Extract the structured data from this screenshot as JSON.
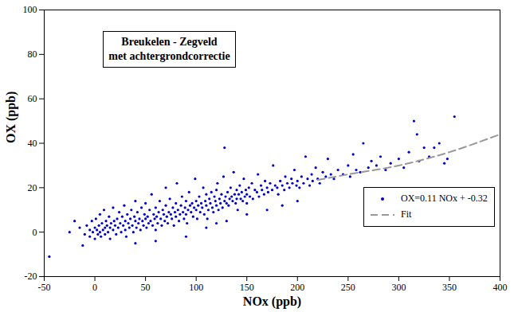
{
  "chart_data": {
    "type": "scatter",
    "title": "Breukelen - Zegveld",
    "subtitle": "met achtergrondcorrectie",
    "x_label": "NOx (ppb)",
    "y_label": "OX (ppb)",
    "xlim": [
      -50,
      400
    ],
    "xticks": [
      -50,
      0,
      50,
      100,
      150,
      200,
      250,
      300,
      350,
      400
    ],
    "ylim": [
      -20,
      100
    ],
    "yticks": [
      -20,
      0,
      20,
      40,
      60,
      80,
      100
    ],
    "grid": false,
    "legend": "lower right",
    "series": [
      {
        "name": "OX=0.11 NOx + -0.32",
        "type": "scatter",
        "marker": "circle",
        "color": "#0000cc",
        "x": [
          -45,
          -25,
          -15,
          -10,
          -8,
          -5,
          -5,
          -3,
          -2,
          0,
          0,
          1,
          2,
          3,
          4,
          5,
          5,
          6,
          7,
          8,
          9,
          10,
          10,
          11,
          12,
          13,
          14,
          15,
          15,
          16,
          18,
          18,
          19,
          20,
          21,
          22,
          23,
          24,
          25,
          26,
          27,
          28,
          29,
          30,
          30,
          31,
          32,
          33,
          34,
          35,
          36,
          37,
          38,
          39,
          40,
          40,
          41,
          42,
          43,
          44,
          45,
          46,
          47,
          48,
          49,
          50,
          50,
          51,
          52,
          53,
          54,
          55,
          56,
          57,
          58,
          59,
          60,
          60,
          61,
          62,
          63,
          64,
          65,
          66,
          67,
          68,
          69,
          70,
          70,
          71,
          72,
          73,
          74,
          75,
          76,
          77,
          78,
          79,
          80,
          80,
          81,
          82,
          83,
          84,
          85,
          86,
          87,
          88,
          89,
          90,
          90,
          91,
          92,
          93,
          94,
          95,
          96,
          97,
          98,
          99,
          100,
          100,
          101,
          102,
          103,
          104,
          105,
          106,
          107,
          108,
          109,
          110,
          110,
          111,
          112,
          113,
          114,
          115,
          116,
          117,
          118,
          119,
          120,
          120,
          121,
          122,
          123,
          124,
          125,
          126,
          127,
          128,
          129,
          130,
          128,
          131,
          132,
          133,
          134,
          135,
          136,
          137,
          138,
          139,
          140,
          140,
          141,
          142,
          143,
          144,
          145,
          146,
          147,
          148,
          149,
          150,
          150,
          152,
          153,
          155,
          156,
          158,
          160,
          161,
          162,
          164,
          165,
          167,
          168,
          170,
          171,
          173,
          175,
          176,
          178,
          180,
          181,
          183,
          185,
          187,
          188,
          190,
          192,
          194,
          195,
          197,
          199,
          200,
          202,
          204,
          206,
          208,
          210,
          212,
          214,
          215,
          218,
          220,
          222,
          225,
          228,
          230,
          233,
          236,
          240,
          245,
          250,
          252,
          255,
          258,
          262,
          265,
          270,
          273,
          278,
          282,
          287,
          292,
          300,
          305,
          310,
          315,
          318,
          320,
          325,
          330,
          335,
          340,
          345,
          348,
          355,
          130,
          150,
          90,
          60,
          40,
          120,
          170,
          200,
          185,
          110,
          -20,
          -12
        ],
        "values": [
          -11,
          0,
          2,
          -1,
          3,
          1,
          -2,
          5,
          0,
          2,
          -3,
          6,
          1,
          -1,
          3,
          8,
          0,
          -2,
          4,
          1,
          10,
          2,
          -1,
          5,
          3,
          0,
          7,
          2,
          -3,
          4,
          1,
          11,
          5,
          3,
          -1,
          6,
          2,
          9,
          4,
          0,
          7,
          3,
          12,
          5,
          1,
          -2,
          8,
          4,
          2,
          6,
          10,
          3,
          0,
          7,
          5,
          14,
          2,
          9,
          4,
          6,
          1,
          11,
          5,
          3,
          8,
          6,
          13,
          2,
          7,
          4,
          10,
          5,
          17,
          3,
          8,
          6,
          11,
          1,
          7,
          4,
          9,
          14,
          6,
          3,
          10,
          8,
          5,
          12,
          20,
          7,
          4,
          9,
          15,
          8,
          6,
          11,
          3,
          9,
          13,
          7,
          22,
          10,
          5,
          8,
          12,
          16,
          9,
          6,
          11,
          14,
          8,
          4,
          10,
          18,
          12,
          9,
          13,
          7,
          11,
          24,
          14,
          10,
          6,
          12,
          16,
          9,
          13,
          11,
          20,
          8,
          14,
          12,
          17,
          6,
          10,
          15,
          13,
          18,
          11,
          9,
          16,
          14,
          12,
          19,
          22,
          10,
          15,
          13,
          17,
          11,
          25,
          14,
          16,
          13,
          38,
          18,
          12,
          15,
          20,
          16,
          14,
          27,
          17,
          13,
          15,
          19,
          10,
          17,
          21,
          15,
          18,
          14,
          24,
          16,
          19,
          17,
          13,
          20,
          16,
          22,
          15,
          19,
          18,
          26,
          16,
          21,
          19,
          17,
          23,
          20,
          18,
          22,
          19,
          30,
          21,
          20,
          17,
          23,
          21,
          19,
          25,
          22,
          20,
          24,
          22,
          28,
          21,
          23,
          20,
          25,
          22,
          34,
          24,
          21,
          26,
          23,
          29,
          24,
          22,
          27,
          25,
          33,
          26,
          24,
          28,
          26,
          30,
          25,
          35,
          28,
          27,
          40,
          29,
          32,
          30,
          34,
          28,
          31,
          33,
          29,
          36,
          50,
          44,
          32,
          38,
          34,
          38,
          40,
          31,
          33,
          52,
          5,
          8,
          -2,
          -4,
          -5,
          4,
          10,
          14,
          12,
          2,
          5,
          -6
        ]
      },
      {
        "name": "Fit",
        "type": "line",
        "line_style": "dashed",
        "color": "#999999",
        "x": [
          220,
          250,
          300,
          350,
          400
        ],
        "values": [
          23.5,
          26,
          30,
          36,
          44
        ]
      }
    ]
  }
}
